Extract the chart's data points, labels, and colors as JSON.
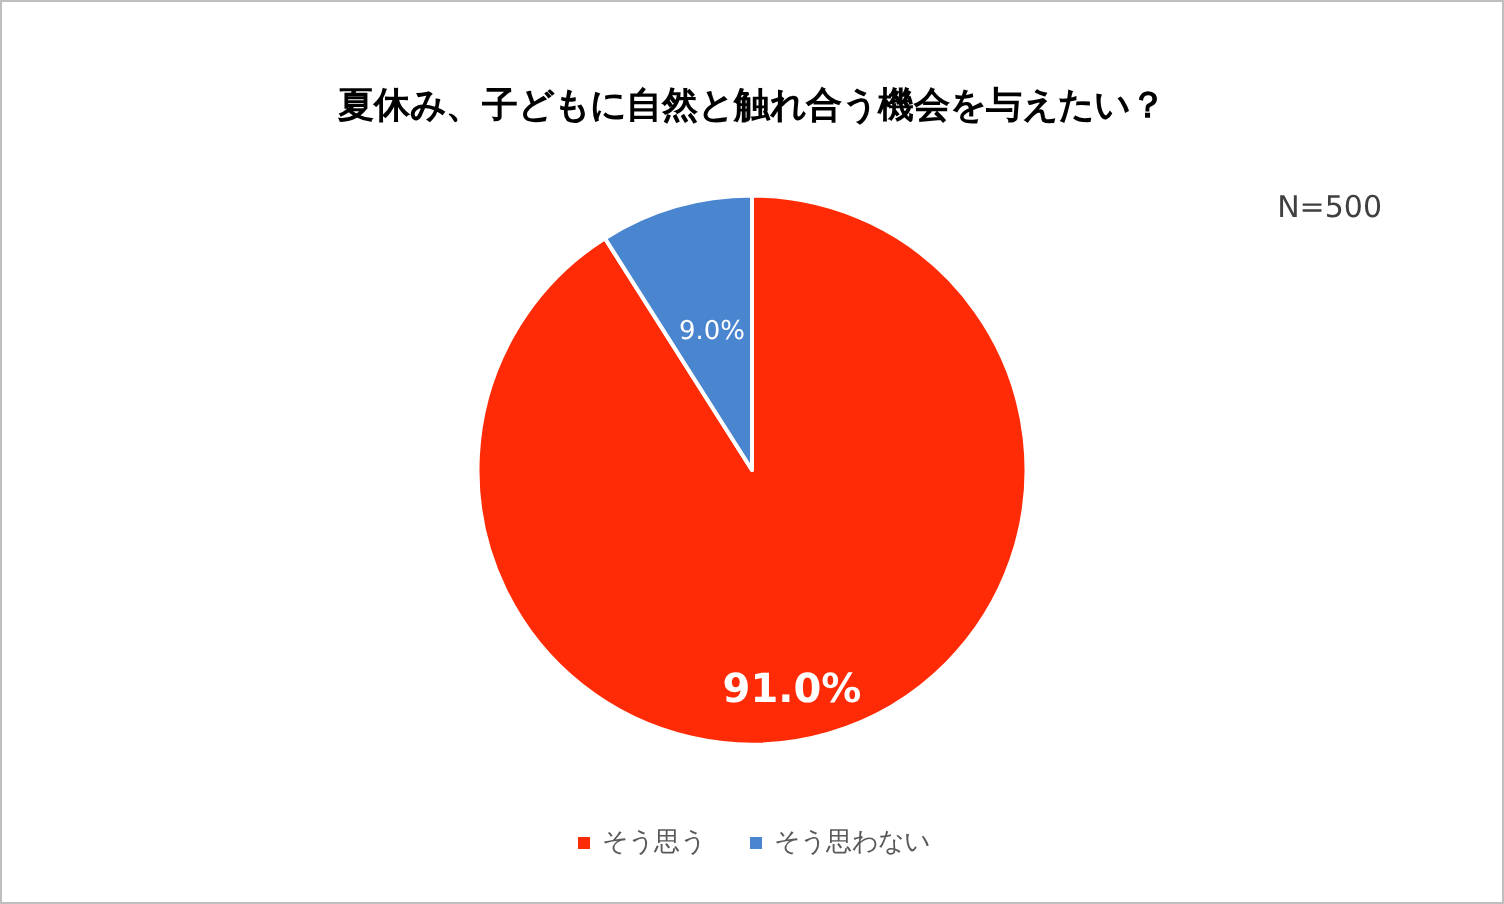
{
  "chart_data": {
    "type": "pie",
    "title": "夏休み、子どもに自然と触れ合う機会を与えたい？",
    "categories": [
      "そう思う",
      "そう思わない"
    ],
    "values": [
      91.0,
      9.0
    ],
    "colors": [
      "#ff2b06",
      "#4a86d0"
    ],
    "value_labels": [
      "91.0%",
      "9.0%"
    ],
    "annotations": [
      "N=500"
    ],
    "legend": "bottom"
  }
}
